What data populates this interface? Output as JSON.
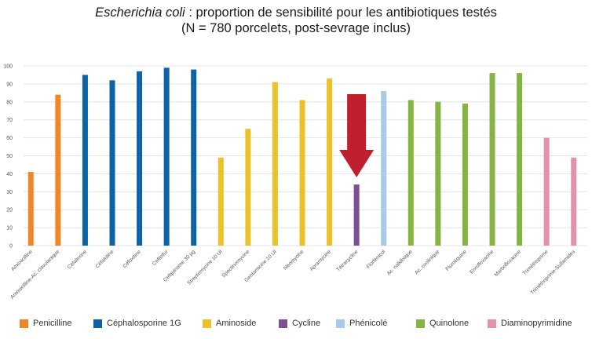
{
  "title": {
    "species": "Escherichia coli",
    "line1_rest": " : proportion de sensibilité pour les antibiotiques testés",
    "line2": "(N = 780 porcelets, post-sevrage inclus)"
  },
  "chart_data": {
    "type": "bar",
    "ylim": [
      0,
      100
    ],
    "yticks": [
      0,
      10,
      20,
      30,
      40,
      50,
      60,
      70,
      80,
      90,
      100
    ],
    "grid": true,
    "legend_position": "bottom",
    "categories": [
      "Amoxicilline",
      "Amoxicilline-Ac. clavulanique",
      "Céfalexine",
      "Céfalotine",
      "Céfoxitine",
      "Ceftiofur",
      "Cefquinome 30 µg",
      "Streptomycine 10 UI",
      "Spectinomycine",
      "Gentamicine 10 UI",
      "Néomycine",
      "Apramycine",
      "Tétracycline",
      "Florfénicol",
      "Ac. nalidixique",
      "Ac. oxolinique",
      "Fluméquine",
      "Enrofloxacine",
      "Marbofloxacine",
      "Triméthoprime",
      "Triméthoprime-Sulfamides"
    ],
    "values": [
      41,
      84,
      95,
      92,
      97,
      99,
      98,
      49,
      65,
      91,
      81,
      93,
      34,
      86,
      81,
      80,
      79,
      96,
      96,
      60,
      49
    ],
    "groups": [
      0,
      0,
      1,
      1,
      1,
      1,
      1,
      2,
      2,
      2,
      2,
      2,
      3,
      4,
      5,
      5,
      5,
      5,
      5,
      6,
      6
    ],
    "legend": [
      {
        "name": "Penicilline",
        "color": "#F0862A"
      },
      {
        "name": "Céphalosporine 1G",
        "color": "#0E63A6"
      },
      {
        "name": "Aminoside",
        "color": "#ECC22C"
      },
      {
        "name": "Cycline",
        "color": "#7E4F96"
      },
      {
        "name": "Phénicolé",
        "color": "#A7CBE8"
      },
      {
        "name": "Quinolone",
        "color": "#86B440"
      },
      {
        "name": "Diaminopyrimidine",
        "color": "#E591A9"
      }
    ],
    "highlight": {
      "category": "Tétracycline",
      "marker": "arrow-down",
      "color": "#C0202E"
    }
  }
}
